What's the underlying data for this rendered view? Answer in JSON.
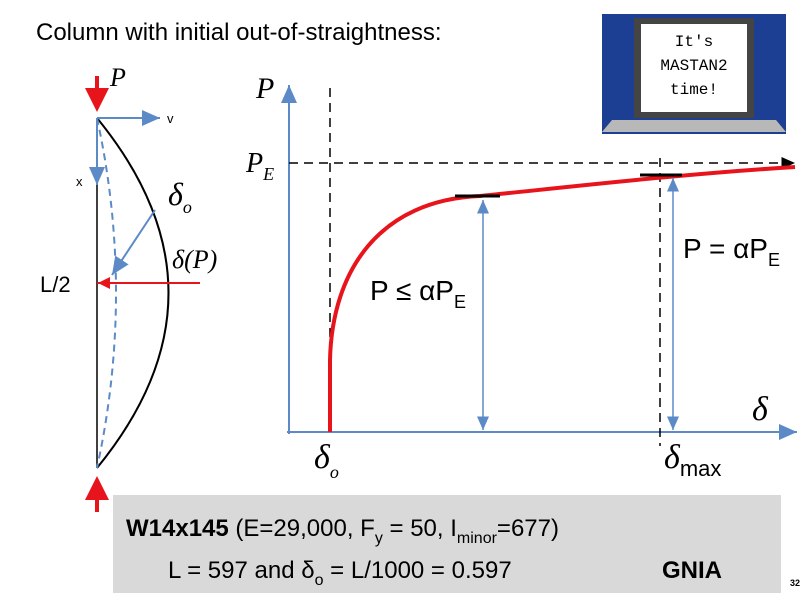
{
  "title": "Column with initial out-of-straightness:",
  "column": {
    "load": "P",
    "v_axis": "v",
    "x_axis": "x",
    "delta_o": [
      "δ",
      "o"
    ],
    "delta_p": "δ(P)",
    "mid_height": "L/2"
  },
  "graph": {
    "y_axis": "P",
    "x_axis": "δ",
    "euler_load": [
      "P",
      "E"
    ],
    "delta_o": [
      "δ",
      "o"
    ],
    "delta_max": [
      "δ",
      "max"
    ],
    "lower_bound": [
      "P ≤ αP",
      "E"
    ],
    "upper_bound": [
      "P = αP",
      "E"
    ]
  },
  "badge": {
    "lines": [
      "It's",
      "MASTAN2",
      "time!"
    ]
  },
  "properties": {
    "line1": [
      "W14x145",
      " (E=29,000, F",
      "y",
      " = 50, I",
      "minor",
      "=677)"
    ],
    "line2": [
      "L = 597 and δ",
      "o",
      " = L/1000 = 0.597"
    ],
    "tag": "GNIA"
  },
  "page_number": "32"
}
